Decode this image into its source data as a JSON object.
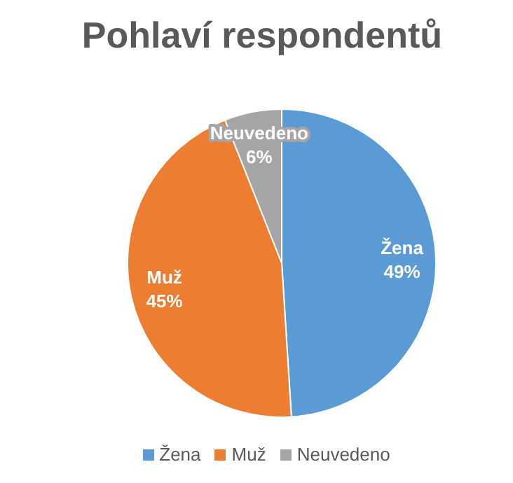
{
  "chart_data": {
    "type": "pie",
    "title": "Pohlaví respondentů",
    "categories": [
      "Žena",
      "Muž",
      "Neuvedeno"
    ],
    "values": [
      49,
      45,
      6
    ],
    "value_labels": [
      "49%",
      "45%",
      "6%"
    ],
    "colors": [
      "#5b9bd5",
      "#ed7d31",
      "#a5a5a5"
    ],
    "legend": "bottom"
  }
}
